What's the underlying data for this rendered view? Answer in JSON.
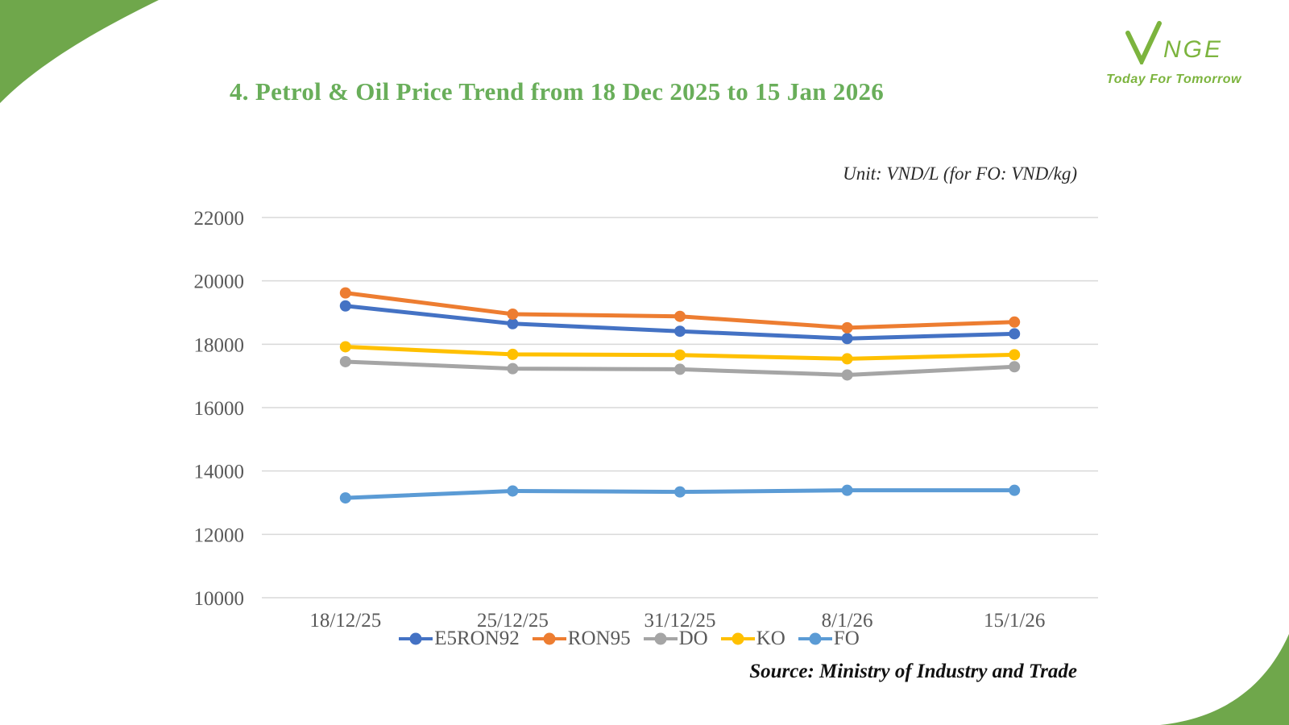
{
  "page": {
    "title": "4. Petrol & Oil Price Trend from 18 Dec 2025 to 15 Jan 2026",
    "unit_note": "Unit: VND/L (for FO: VND/kg)",
    "source": "Source: Ministry of Industry and Trade"
  },
  "logo": {
    "brand_v": "V",
    "brand_rest": "NGE",
    "tagline": "Today For Tomorrow"
  },
  "colors": {
    "title_green": "#69ae5a",
    "corner_green": "#6fa74b",
    "logo_green": "#7cb43e",
    "axis_text": "#595959",
    "gridline": "#d9d9d9"
  },
  "chart_data": {
    "type": "line",
    "title": "4. Petrol & Oil Price Trend from 18 Dec 2025 to 15 Jan 2026",
    "unit": "VND/L (for FO: VND/kg)",
    "categories": [
      "18/12/25",
      "25/12/25",
      "31/12/25",
      "8/1/26",
      "15/1/26"
    ],
    "series": [
      {
        "name": "E5RON92",
        "color": "#4472C4",
        "values": [
          19210,
          18650,
          18410,
          18180,
          18330
        ]
      },
      {
        "name": "RON95",
        "color": "#ED7D31",
        "values": [
          19620,
          18950,
          18880,
          18520,
          18700
        ]
      },
      {
        "name": "DO",
        "color": "#A5A5A5",
        "values": [
          17450,
          17230,
          17210,
          17030,
          17290
        ]
      },
      {
        "name": "KO",
        "color": "#FFC000",
        "values": [
          17920,
          17680,
          17660,
          17540,
          17670
        ]
      },
      {
        "name": "FO",
        "color": "#5B9BD5",
        "values": [
          13150,
          13370,
          13340,
          13390,
          13390
        ]
      }
    ],
    "ylim": [
      10000,
      22000
    ],
    "yticks": [
      10000,
      12000,
      14000,
      16000,
      18000,
      20000,
      22000
    ],
    "grid": true,
    "legend_position": "bottom",
    "source": "Source: Ministry of Industry and Trade"
  }
}
